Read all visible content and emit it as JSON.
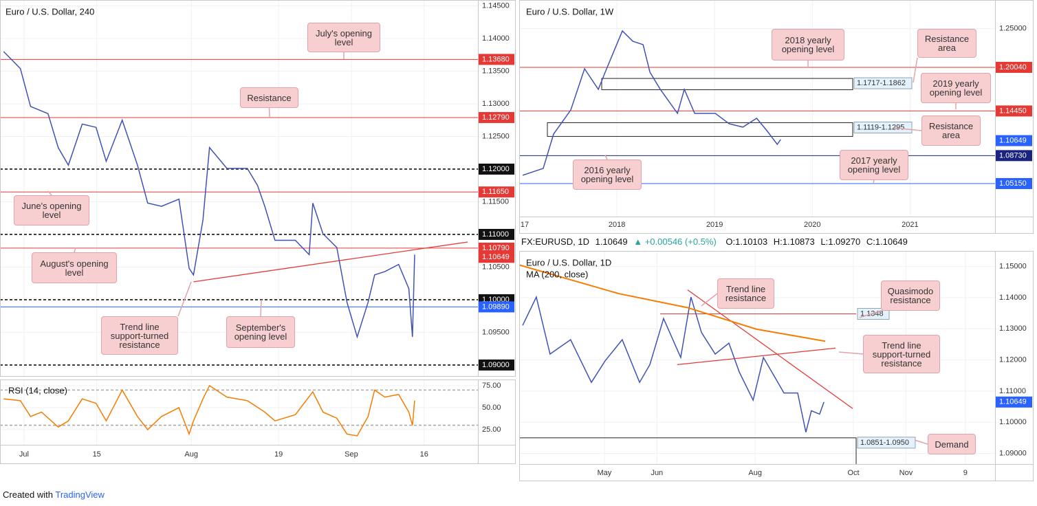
{
  "header": {
    "symbol": "FX:EURUSD, 1D",
    "last": "1.10649",
    "change": "+0.00546 (+0.5%)",
    "open": "O:1.10103",
    "high": "H:1.10873",
    "low": "L:1.09270",
    "close": "C:1.10649"
  },
  "footer": {
    "created": "Created with",
    "brand": "TradingView"
  },
  "chart_data": [
    {
      "type": "line",
      "title": "Euro / U.S. Dollar, 240",
      "xlim": [
        -3.3,
        62.4
      ],
      "ylim": [
        1.0882,
        1.1459
      ],
      "grid": true,
      "yticks": [
        {
          "value": 1.145,
          "label": "1.14500"
        },
        {
          "value": 1.14,
          "label": "1.14000"
        },
        {
          "value": 1.135,
          "label": "1.13500"
        },
        {
          "value": 1.13,
          "label": "1.13000"
        },
        {
          "value": 1.125,
          "label": "1.12500"
        },
        {
          "value": 1.115,
          "label": "1.11500"
        },
        {
          "value": 1.105,
          "label": "1.10500"
        },
        {
          "value": 1.095,
          "label": "1.09500"
        }
      ],
      "series": [
        {
          "color": "#3f51b5",
          "x": [
            -2.8,
            -0.5,
            0.9,
            3.3,
            4.7,
            6.1,
            8.0,
            9.9,
            11.3,
            13.5,
            15.6,
            17.0,
            18.9,
            21.3,
            22.7,
            23.3,
            24.6,
            25.5,
            27.9,
            30.7,
            32.1,
            33.1,
            34.5,
            37.3,
            39.2,
            39.7,
            41.1,
            43.0,
            44.4,
            45.8,
            47.3,
            48.2,
            49.6,
            51.5,
            52.9,
            53.4,
            53.7
          ],
          "values": [
            1.138,
            1.1354,
            1.1296,
            1.1285,
            1.1233,
            1.1206,
            1.1269,
            1.1264,
            1.1212,
            1.1275,
            1.1206,
            1.1148,
            1.1143,
            1.1154,
            1.1048,
            1.1038,
            1.1122,
            1.1233,
            1.1201,
            1.1201,
            1.1175,
            1.1143,
            1.1091,
            1.1091,
            1.1069,
            1.1148,
            1.1101,
            1.108,
            1.0996,
            1.0943,
            1.0996,
            1.1038,
            1.1043,
            1.1054,
            1.1017,
            1.0943,
            1.1069
          ]
        }
      ],
      "levels": [
        {
          "value": 1.1368,
          "label": "1.13680",
          "color": "#e53935",
          "style": "solid"
        },
        {
          "value": 1.1279,
          "label": "1.12790",
          "color": "#e53935",
          "style": "solid"
        },
        {
          "value": 1.12,
          "label": "1.12000",
          "color": "#111111",
          "style": "dashed"
        },
        {
          "value": 1.1165,
          "label": "1.11650",
          "color": "#e53935",
          "style": "solid"
        },
        {
          "value": 1.11,
          "label": "1.11000",
          "color": "#111111",
          "style": "dashed"
        },
        {
          "value": 1.1079,
          "label": "1.10790",
          "color": "#e53935",
          "style": "solid"
        },
        {
          "value": 1.10649,
          "label": "1.10649",
          "color": "#e53935",
          "style": "none"
        },
        {
          "value": 1.1,
          "label": "1.10000",
          "color": "#111111",
          "style": "dashed"
        },
        {
          "value": 1.0989,
          "label": "1.09890",
          "color": "#2962ff",
          "style": "solid"
        },
        {
          "value": 1.09,
          "label": "1.09000",
          "color": "#111111",
          "style": "dashed"
        }
      ],
      "lines": [
        {
          "x": [
            23.3,
            61.0
          ],
          "y": [
            1.10274,
            1.10884
          ],
          "color": "#e53935"
        }
      ],
      "annotations": [
        "July's opening level",
        "Resistance",
        "June's opening level",
        "August's opening level",
        "Trend line support-turned resistance",
        "September's opening level"
      ]
    },
    {
      "type": "line",
      "title": "RSI (14, close)",
      "xlim": [
        -3.3,
        62.4
      ],
      "ylim": [
        7.8,
        82
      ],
      "grid": true,
      "yticks": [
        {
          "value": 75,
          "label": "75.00"
        },
        {
          "value": 50,
          "label": "50.00"
        },
        {
          "value": 25,
          "label": "25.00"
        }
      ],
      "xticks": [
        {
          "value": 0,
          "label": "Jul"
        },
        {
          "value": 10,
          "label": "15"
        },
        {
          "value": 23,
          "label": "Aug"
        },
        {
          "value": 35,
          "label": "19"
        },
        {
          "value": 45,
          "label": "Sep"
        },
        {
          "value": 55,
          "label": "16"
        }
      ],
      "series": [
        {
          "color": "#f57c00",
          "x": [
            -2.8,
            -0.5,
            0.9,
            2.4,
            4.7,
            6.1,
            8.0,
            9.9,
            11.3,
            13.5,
            15.6,
            17.0,
            18.9,
            21.3,
            22.7,
            23.3,
            24.6,
            25.5,
            27.9,
            30.7,
            33.1,
            34.5,
            37.3,
            39.7,
            41.1,
            43.0,
            44.4,
            45.8,
            47.3,
            48.2,
            49.6,
            51.5,
            52.9,
            53.4,
            53.7
          ],
          "values": [
            60,
            58,
            40,
            45,
            28,
            35,
            60,
            55,
            35,
            70,
            40,
            25,
            40,
            50,
            20,
            35,
            60,
            75,
            62,
            58,
            45,
            35,
            42,
            68,
            45,
            38,
            20,
            18,
            40,
            70,
            62,
            65,
            45,
            30,
            58
          ]
        }
      ],
      "levels": [
        {
          "value": 70,
          "color": "#aaaaaa",
          "style": "dashed"
        },
        {
          "value": 30,
          "color": "#aaaaaa",
          "style": "dashed"
        }
      ]
    },
    {
      "type": "line",
      "title": "Euro / U.S. Dollar, 1W",
      "xlim": [
        2017.0,
        2021.87
      ],
      "ylim": [
        1.0092,
        1.2867
      ],
      "grid": true,
      "yticks": [
        {
          "value": 1.25,
          "label": "1.25000"
        }
      ],
      "xticks": [
        {
          "value": 2017,
          "label": "17"
        },
        2018,
        2019,
        2020,
        2021
      ],
      "series": [
        {
          "color": "#3f51b5",
          "x": [
            2017.035,
            2017.246,
            2017.352,
            2017.528,
            2017.669,
            2017.81,
            2017.88,
            2018.056,
            2018.162,
            2018.268,
            2018.338,
            2018.444,
            2018.62,
            2018.69,
            2018.796,
            2019.007,
            2019.148,
            2019.289,
            2019.43,
            2019.535,
            2019.641,
            2019.676
          ],
          "values": [
            1.0621,
            1.0709,
            1.1149,
            1.1458,
            1.1986,
            1.1722,
            1.1942,
            1.2471,
            1.2339,
            1.2295,
            1.1942,
            1.1722,
            1.1414,
            1.1722,
            1.1414,
            1.1414,
            1.1282,
            1.1238,
            1.1352,
            1.1193,
            1.1017,
            1.1079
          ]
        }
      ],
      "levels": [
        {
          "value": 1.2004,
          "label": "1.20040",
          "color": "#e53935",
          "style": "solid"
        },
        {
          "value": 1.1445,
          "label": "1.14450",
          "color": "#e53935",
          "style": "solid"
        },
        {
          "value": 1.10649,
          "label": "1.10649",
          "color": "#2962ff",
          "style": "none"
        },
        {
          "value": 1.0873,
          "label": "1.08730",
          "color": "#1a237e",
          "style": "solid"
        },
        {
          "value": 1.0515,
          "label": "1.05150",
          "color": "#2962ff",
          "style": "solid"
        }
      ],
      "zones": [
        {
          "low": 1.1717,
          "high": 1.1862,
          "label": "1.1717-1.1862"
        },
        {
          "low": 1.1119,
          "high": 1.1295,
          "label": "1.1119-1.1295"
        }
      ],
      "annotations": [
        "2018 yearly opening level",
        "Resistance area",
        "2019 yearly opening level",
        "Resistance area",
        "2016 yearly opening level",
        "2017 yearly opening level"
      ]
    },
    {
      "type": "line",
      "title": "Euro / U.S. Dollar, 1D",
      "xlim": [
        -37.3,
        171.0
      ],
      "ylim": [
        1.08658,
        1.155
      ],
      "grid": true,
      "yticks": [
        {
          "value": 1.15,
          "label": "1.15000"
        },
        {
          "value": 1.14,
          "label": "1.14000"
        },
        {
          "value": 1.13,
          "label": "1.13000"
        },
        {
          "value": 1.12,
          "label": "1.12000"
        },
        {
          "value": 1.11,
          "label": "1.11000"
        },
        {
          "value": 1.1,
          "label": "1.10000"
        },
        {
          "value": 1.09,
          "label": "1.09000"
        }
      ],
      "xticks": [
        {
          "value": 0,
          "label": "May"
        },
        {
          "value": 23,
          "label": "Jun"
        },
        {
          "value": 66,
          "label": "Aug"
        },
        {
          "value": 109,
          "label": "Oct"
        },
        {
          "value": 132,
          "label": "Nov"
        },
        {
          "value": 158,
          "label": "9"
        }
      ],
      "series": [
        {
          "color": "#3f51b5",
          "x": [
            -35.8,
            -29.8,
            -23.8,
            -14.8,
            -5.7,
            0.3,
            7.8,
            15.4,
            19.9,
            25.9,
            33.4,
            37.9,
            42.5,
            48.5,
            54.5,
            59.0,
            65.1,
            69.6,
            74.1,
            78.6,
            84.6,
            88.2,
            90.6,
            94.2,
            96.1
          ],
          "values": [
            1.1311,
            1.1402,
            1.1219,
            1.1265,
            1.1128,
            1.1197,
            1.1265,
            1.1128,
            1.1185,
            1.1333,
            1.1208,
            1.1402,
            1.1288,
            1.1219,
            1.1254,
            1.1162,
            1.1071,
            1.1208,
            1.1151,
            1.1094,
            1.1094,
            1.0968,
            1.1037,
            1.1026,
            1.1065
          ]
        },
        {
          "name": "MA (200, close)",
          "color": "#f57c00",
          "x": [
            -37.3,
            6.3,
            36.4,
            66.5,
            96.7
          ],
          "values": [
            1.1505,
            1.1413,
            1.1368,
            1.1299,
            1.126
          ]
        }
      ],
      "levels": [
        {
          "value": 1.10649,
          "label": "1.10649",
          "color": "#2962ff",
          "style": "none"
        }
      ],
      "lines": [
        {
          "x": [
            36.4,
            108.7
          ],
          "y": [
            1.1425,
            1.1044
          ],
          "color": "#e53935"
        },
        {
          "x": [
            31.9,
            101.2
          ],
          "y": [
            1.1185,
            1.1238
          ],
          "color": "#e53935"
        }
      ],
      "tags": [
        1.1348
      ],
      "zones": [
        {
          "low": 1.0851,
          "high": 1.095,
          "label": "1.0851-1.0950"
        }
      ],
      "annotations": [
        "Trend line resistance",
        "Quasimodo resistance",
        "Trend line support-turned resistance",
        "Demand"
      ]
    }
  ]
}
